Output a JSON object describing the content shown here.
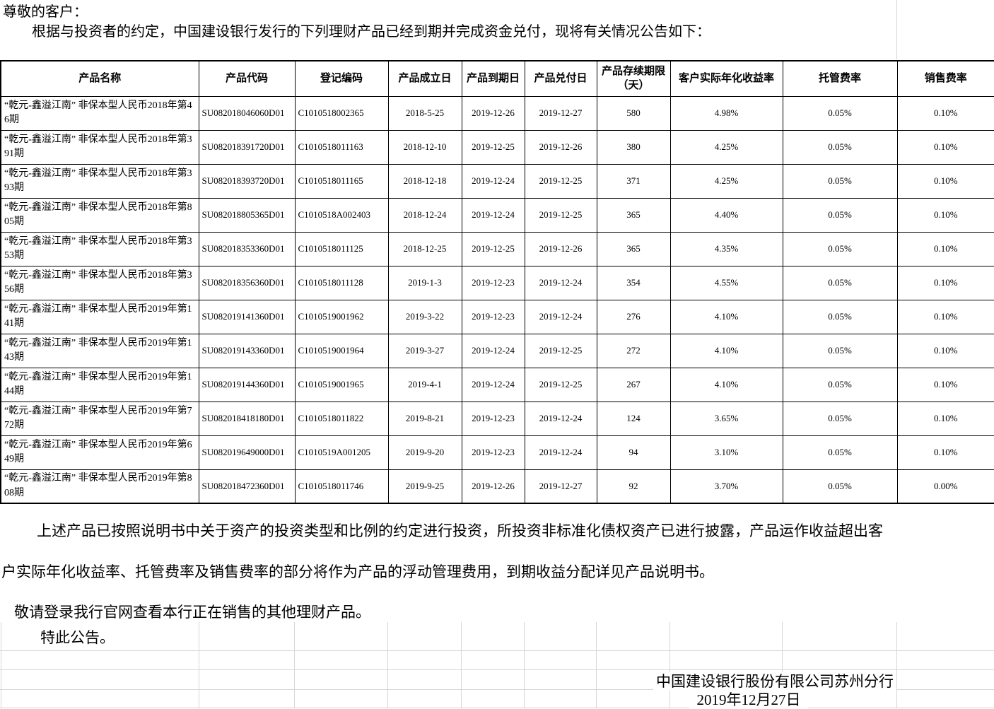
{
  "document": {
    "greeting": "尊敬的客户：",
    "intro": "根据与投资者的约定，中国建设银行发行的下列理财产品已经到期并完成资金兑付，现将有关情况公告如下：",
    "closing_para_line1": "上述产品已按照说明书中关于资产的投资类型和比例的约定进行投资，所投资非标准化债权资产已进行披露，产品运作收益超出客",
    "closing_para_line2": "户实际年化收益率、托管费率及销售费率的部分将作为产品的浮动管理费用，到期收益分配详见产品说明书。",
    "promo_line": "敬请登录我行官网查看本行正在销售的其他理财产品。",
    "announce_line": "特此公告。",
    "signature": "中国建设银行股份有限公司苏州分行",
    "date": "2019年12月27日"
  },
  "table": {
    "headers": [
      "产品名称",
      "产品代码",
      "登记编码",
      "产品成立日",
      "产品到期日",
      "产品兑付日",
      "产品存续期限（天）",
      "客户实际年化收益率",
      "托管费率",
      "销售费率"
    ],
    "rows": [
      [
        "“乾元-鑫溢江南” 非保本型人民币2018年第46期",
        "SU082018046060D01",
        "C1010518002365",
        "2018-5-25",
        "2019-12-26",
        "2019-12-27",
        "580",
        "4.98%",
        "0.05%",
        "0.10%"
      ],
      [
        "“乾元-鑫溢江南” 非保本型人民币2018年第391期",
        "SU082018391720D01",
        "C1010518011163",
        "2018-12-10",
        "2019-12-25",
        "2019-12-26",
        "380",
        "4.25%",
        "0.05%",
        "0.10%"
      ],
      [
        "“乾元-鑫溢江南” 非保本型人民币2018年第393期",
        "SU082018393720D01",
        "C1010518011165",
        "2018-12-18",
        "2019-12-24",
        "2019-12-25",
        "371",
        "4.25%",
        "0.05%",
        "0.10%"
      ],
      [
        "“乾元-鑫溢江南” 非保本型人民币2018年第805期",
        "SU082018805365D01",
        "C1010518A002403",
        "2018-12-24",
        "2019-12-24",
        "2019-12-25",
        "365",
        "4.40%",
        "0.05%",
        "0.10%"
      ],
      [
        "“乾元-鑫溢江南” 非保本型人民币2018年第353期",
        "SU082018353360D01",
        "C1010518011125",
        "2018-12-25",
        "2019-12-25",
        "2019-12-26",
        "365",
        "4.35%",
        "0.05%",
        "0.10%"
      ],
      [
        "“乾元-鑫溢江南” 非保本型人民币2018年第356期",
        "SU082018356360D01",
        "C1010518011128",
        "2019-1-3",
        "2019-12-23",
        "2019-12-24",
        "354",
        "4.55%",
        "0.05%",
        "0.10%"
      ],
      [
        "“乾元-鑫溢江南” 非保本型人民币2019年第141期",
        "SU082019141360D01",
        "C1010519001962",
        "2019-3-22",
        "2019-12-23",
        "2019-12-24",
        "276",
        "4.10%",
        "0.05%",
        "0.10%"
      ],
      [
        "“乾元-鑫溢江南” 非保本型人民币2019年第143期",
        "SU082019143360D01",
        "C1010519001964",
        "2019-3-27",
        "2019-12-24",
        "2019-12-25",
        "272",
        "4.10%",
        "0.05%",
        "0.10%"
      ],
      [
        "“乾元-鑫溢江南” 非保本型人民币2019年第144期",
        "SU082019144360D01",
        "C1010519001965",
        "2019-4-1",
        "2019-12-24",
        "2019-12-25",
        "267",
        "4.10%",
        "0.05%",
        "0.10%"
      ],
      [
        "“乾元-鑫溢江南” 非保本型人民币2019年第772期",
        "SU082018418180D01",
        "C1010518011822",
        "2019-8-21",
        "2019-12-23",
        "2019-12-24",
        "124",
        "3.65%",
        "0.05%",
        "0.10%"
      ],
      [
        "“乾元-鑫溢江南” 非保本型人民币2019年第649期",
        "SU082019649000D01",
        "C1010519A001205",
        "2019-9-20",
        "2019-12-23",
        "2019-12-24",
        "94",
        "3.10%",
        "0.05%",
        "0.10%"
      ],
      [
        "“乾元-鑫溢江南” 非保本型人民币2019年第808期",
        "SU082018472360D01",
        "C1010518011746",
        "2019-9-25",
        "2019-12-26",
        "2019-12-27",
        "92",
        "3.70%",
        "0.05%",
        "0.00%"
      ]
    ]
  }
}
